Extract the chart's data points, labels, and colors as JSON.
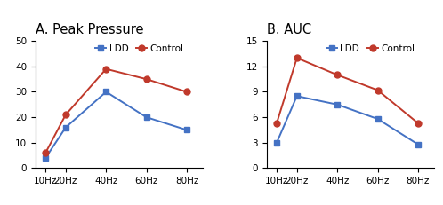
{
  "x_labels": [
    "10Hz",
    "20Hz",
    "40Hz",
    "60Hz",
    "80Hz"
  ],
  "x_values": [
    10,
    20,
    40,
    60,
    80
  ],
  "panel_A_title": "A. Peak Pressure",
  "panel_A_ldd": [
    4,
    16,
    30,
    20,
    15
  ],
  "panel_A_control": [
    6,
    21,
    39,
    35,
    30
  ],
  "panel_A_ylim": [
    0,
    50
  ],
  "panel_A_yticks": [
    0,
    10,
    20,
    30,
    40,
    50
  ],
  "panel_B_title": "B. AUC",
  "panel_B_ldd": [
    3,
    8.5,
    7.5,
    5.8,
    2.8
  ],
  "panel_B_control": [
    5.3,
    13,
    11,
    9.2,
    5.3
  ],
  "panel_B_ylim": [
    0,
    15
  ],
  "panel_B_yticks": [
    0,
    3,
    6,
    9,
    12,
    15
  ],
  "color_ldd": "#4472c4",
  "color_control": "#c0392b",
  "marker_ldd": "s",
  "marker_control": "o",
  "legend_ldd": "LDD",
  "legend_control": "Control",
  "title_fontsize": 10.5,
  "axis_fontsize": 7.5,
  "legend_fontsize": 7.5,
  "linewidth": 1.4,
  "markersize": 5
}
